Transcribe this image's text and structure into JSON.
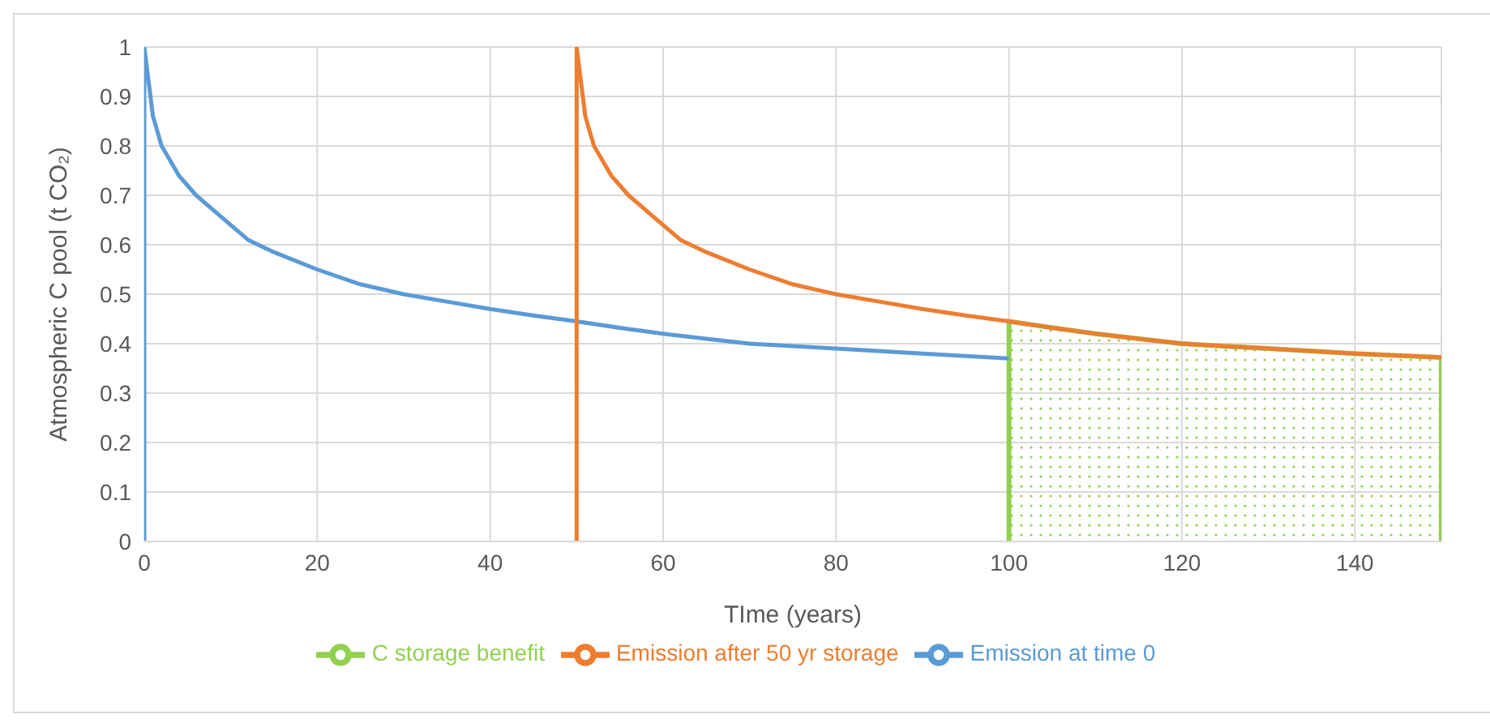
{
  "chart_data": {
    "type": "line",
    "xlabel": "TIme (years)",
    "ylabel": "Atmospheric C pool (t CO₂)",
    "xlim": [
      0,
      150
    ],
    "xticks": [
      0,
      20,
      40,
      60,
      80,
      100,
      120,
      140
    ],
    "ylim": [
      0,
      1
    ],
    "yticks": [
      0,
      0.1,
      0.2,
      0.3,
      0.4,
      0.5,
      0.6,
      0.7,
      0.8,
      0.9,
      1
    ],
    "grid": true,
    "legend": "bottom",
    "marker": "none",
    "line_style": "solid",
    "series": [
      {
        "name": "Emission at time 0",
        "color": "#5b9bd5",
        "x": [
          0,
          0,
          0.5,
          1,
          2,
          4,
          6,
          8,
          10,
          12,
          15,
          20,
          25,
          30,
          35,
          40,
          45,
          50,
          55,
          60,
          65,
          70,
          80,
          90,
          100
        ],
        "values": [
          0,
          1,
          0.93,
          0.86,
          0.8,
          0.74,
          0.7,
          0.67,
          0.64,
          0.61,
          0.585,
          0.55,
          0.52,
          0.5,
          0.485,
          0.47,
          0.457,
          0.445,
          0.432,
          0.42,
          0.41,
          0.4,
          0.39,
          0.38,
          0.37
        ]
      },
      {
        "name": "Emission after 50 yr storage",
        "color": "#ed7d31",
        "x": [
          50,
          50,
          50.5,
          51,
          52,
          54,
          56,
          58,
          60,
          62,
          65,
          70,
          75,
          80,
          85,
          90,
          95,
          100,
          105,
          110,
          115,
          120,
          130,
          140,
          150
        ],
        "values": [
          0,
          1,
          0.93,
          0.86,
          0.8,
          0.74,
          0.7,
          0.67,
          0.64,
          0.61,
          0.585,
          0.55,
          0.52,
          0.5,
          0.485,
          0.47,
          0.457,
          0.445,
          0.432,
          0.42,
          0.41,
          0.4,
          0.39,
          0.38,
          0.372
        ]
      },
      {
        "name": "C storage benefit",
        "type": "area",
        "color": "#92d050",
        "x": [
          100,
          100,
          110,
          120,
          130,
          140,
          150,
          150
        ],
        "values": [
          0,
          0.445,
          0.42,
          0.4,
          0.39,
          0.38,
          0.372,
          0
        ]
      }
    ]
  }
}
